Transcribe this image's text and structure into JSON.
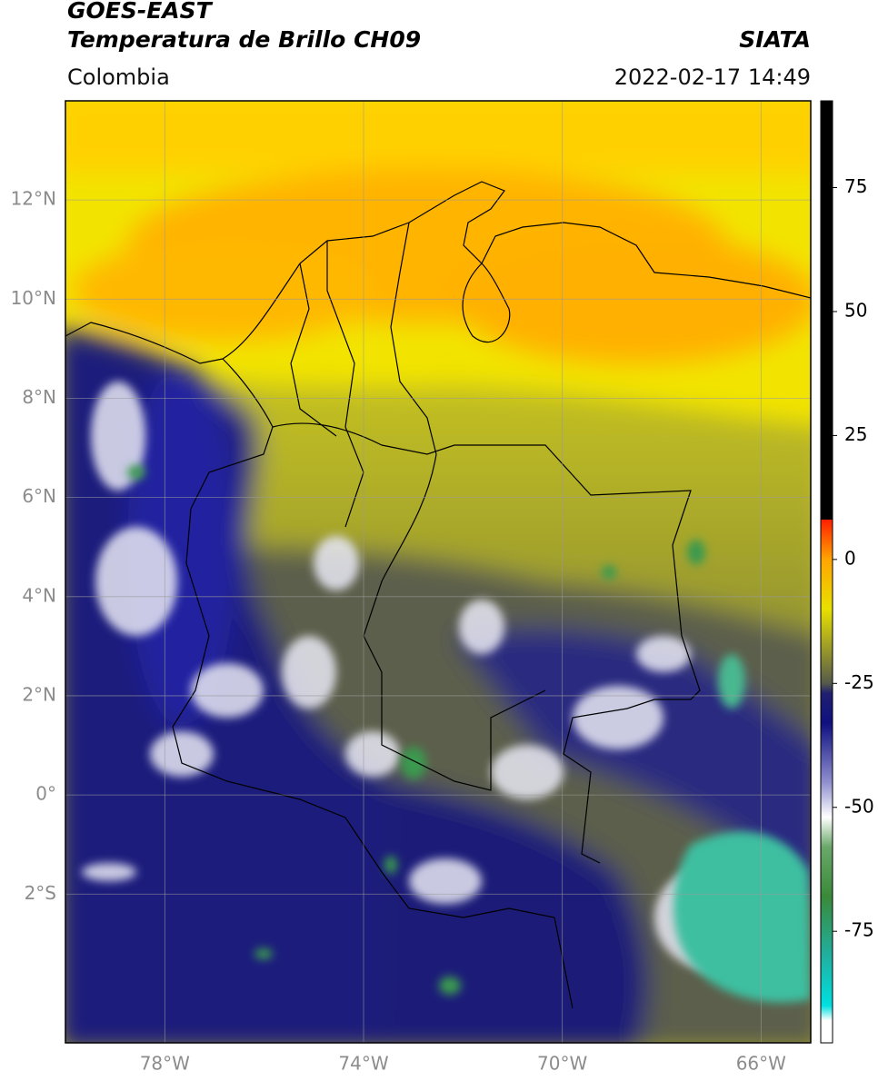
{
  "header": {
    "title_line1": "GOES-EAST",
    "title_line2": "Temperatura de Brillo CH09",
    "source": "SIATA",
    "region": "Colombia",
    "datetime": "2022-02-17 14:49"
  },
  "map": {
    "lonlim": [
      -80,
      -65
    ],
    "latlim": [
      -5,
      14
    ],
    "xticks": [
      {
        "value": -78,
        "label": "78°W"
      },
      {
        "value": -74,
        "label": "74°W"
      },
      {
        "value": -70,
        "label": "70°W"
      },
      {
        "value": -66,
        "label": "66°W"
      }
    ],
    "yticks": [
      {
        "value": 12,
        "label": "12°N"
      },
      {
        "value": 10,
        "label": "10°N"
      },
      {
        "value": 8,
        "label": "8°N"
      },
      {
        "value": 6,
        "label": "6°N"
      },
      {
        "value": 4,
        "label": "4°N"
      },
      {
        "value": 2,
        "label": "2°N"
      },
      {
        "value": 0,
        "label": "0°"
      },
      {
        "value": -2,
        "label": "2°S"
      }
    ],
    "grid": true
  },
  "colorbar": {
    "clim": [
      -97.5,
      92.5
    ],
    "ticks": [
      75,
      50,
      25,
      0,
      -25,
      -50,
      -75
    ],
    "stops": [
      {
        "value": -97.5,
        "color": "#ffffff"
      },
      {
        "value": -93,
        "color": "#ffffff"
      },
      {
        "value": -90,
        "color": "#00e0e0"
      },
      {
        "value": -80,
        "color": "#20b0a0"
      },
      {
        "value": -68,
        "color": "#3a8a3a"
      },
      {
        "value": -58,
        "color": "#6aa86a"
      },
      {
        "value": -52,
        "color": "#ffffff"
      },
      {
        "value": -45,
        "color": "#9090d0"
      },
      {
        "value": -33,
        "color": "#101080"
      },
      {
        "value": -27,
        "color": "#202070"
      },
      {
        "value": -25,
        "color": "#555a4a"
      },
      {
        "value": -18,
        "color": "#9a9a2a"
      },
      {
        "value": -10,
        "color": "#e8e000"
      },
      {
        "value": 0,
        "color": "#ffa500"
      },
      {
        "value": 8,
        "color": "#ff2000"
      },
      {
        "value": 8,
        "color": "#000000"
      },
      {
        "value": 92.5,
        "color": "#000000"
      }
    ]
  }
}
